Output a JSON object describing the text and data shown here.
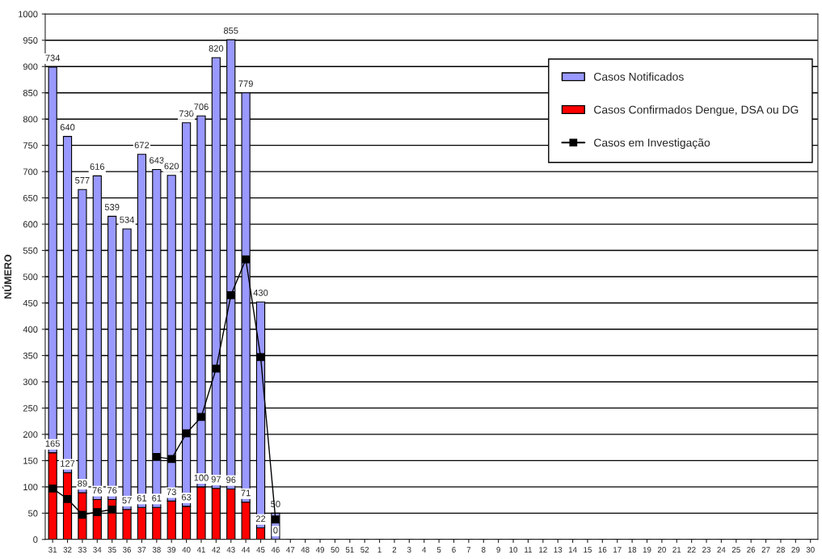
{
  "chart_data": {
    "type": "bar",
    "stacked": true,
    "ylabel": "NÚMERO",
    "categories": [
      "31",
      "32",
      "33",
      "34",
      "35",
      "36",
      "37",
      "38",
      "39",
      "40",
      "41",
      "42",
      "43",
      "44",
      "45",
      "46",
      "47",
      "48",
      "49",
      "50",
      "51",
      "52",
      "1",
      "2",
      "3",
      "4",
      "5",
      "6",
      "7",
      "8",
      "9",
      "10",
      "11",
      "12",
      "13",
      "14",
      "15",
      "16",
      "17",
      "18",
      "19",
      "20",
      "21",
      "22",
      "23",
      "24",
      "25",
      "26",
      "27",
      "28",
      "29",
      "30"
    ],
    "series": [
      {
        "name": "Casos Confirmados Dengue, DSA ou DG",
        "color": "#ff0000",
        "values": [
          165,
          127,
          89,
          76,
          76,
          57,
          61,
          61,
          73,
          63,
          100,
          97,
          96,
          71,
          22,
          0,
          null,
          null,
          null,
          null,
          null,
          null,
          null,
          null,
          null,
          null,
          null,
          null,
          null,
          null,
          null,
          null,
          null,
          null,
          null,
          null,
          null,
          null,
          null,
          null,
          null,
          null,
          null,
          null,
          null,
          null,
          null,
          null,
          null,
          null,
          null,
          null
        ],
        "value_labels": [
          "165",
          "127",
          "89",
          "76",
          "76",
          "57",
          "61",
          "61",
          "73",
          "63",
          "100",
          "97",
          "96",
          "71",
          "22",
          "0",
          null,
          null,
          null,
          null,
          null,
          null,
          null,
          null,
          null,
          null,
          null,
          null,
          null,
          null,
          null,
          null,
          null,
          null,
          null,
          null,
          null,
          null,
          null,
          null,
          null,
          null,
          null,
          null,
          null,
          null,
          null,
          null,
          null,
          null,
          null,
          null
        ]
      },
      {
        "name": "Casos Notificados",
        "color": "#9999ff",
        "values": [
          734,
          640,
          577,
          616,
          539,
          534,
          672,
          643,
          620,
          730,
          706,
          820,
          855,
          779,
          430,
          50,
          null,
          null,
          null,
          null,
          null,
          null,
          null,
          null,
          null,
          null,
          null,
          null,
          null,
          null,
          null,
          null,
          null,
          null,
          null,
          null,
          null,
          null,
          null,
          null,
          null,
          null,
          null,
          null,
          null,
          null,
          null,
          null,
          null,
          null,
          null,
          null
        ],
        "value_labels": [
          "734",
          "640",
          "577",
          "616",
          "539",
          "534",
          "672",
          "643",
          "620",
          "730",
          "706",
          "820",
          "855",
          "779",
          "430",
          "50",
          null,
          null,
          null,
          null,
          null,
          null,
          null,
          null,
          null,
          null,
          null,
          null,
          null,
          null,
          null,
          null,
          null,
          null,
          null,
          null,
          null,
          null,
          null,
          null,
          null,
          null,
          null,
          null,
          null,
          null,
          null,
          null,
          null,
          null,
          null,
          null
        ]
      },
      {
        "name": "Casos em Investigação",
        "type": "line",
        "color": "#000000",
        "marker": "square",
        "line_style": "solid",
        "values": [
          97,
          77,
          47,
          52,
          57,
          null,
          null,
          157,
          153,
          202,
          233,
          325,
          465,
          533,
          347,
          38,
          null,
          null,
          null,
          null,
          null,
          null,
          null,
          null,
          null,
          null,
          null,
          null,
          null,
          null,
          null,
          null,
          null,
          null,
          null,
          null,
          null,
          null,
          null,
          null,
          null,
          null,
          null,
          null,
          null,
          null,
          null,
          null,
          null,
          null,
          null,
          null
        ]
      }
    ],
    "ylim": [
      0,
      1000
    ],
    "yticks": [
      0,
      50,
      100,
      150,
      200,
      250,
      300,
      350,
      400,
      450,
      500,
      550,
      600,
      650,
      700,
      750,
      800,
      850,
      900,
      950,
      1000
    ],
    "grid": "y",
    "legend": "top right"
  }
}
